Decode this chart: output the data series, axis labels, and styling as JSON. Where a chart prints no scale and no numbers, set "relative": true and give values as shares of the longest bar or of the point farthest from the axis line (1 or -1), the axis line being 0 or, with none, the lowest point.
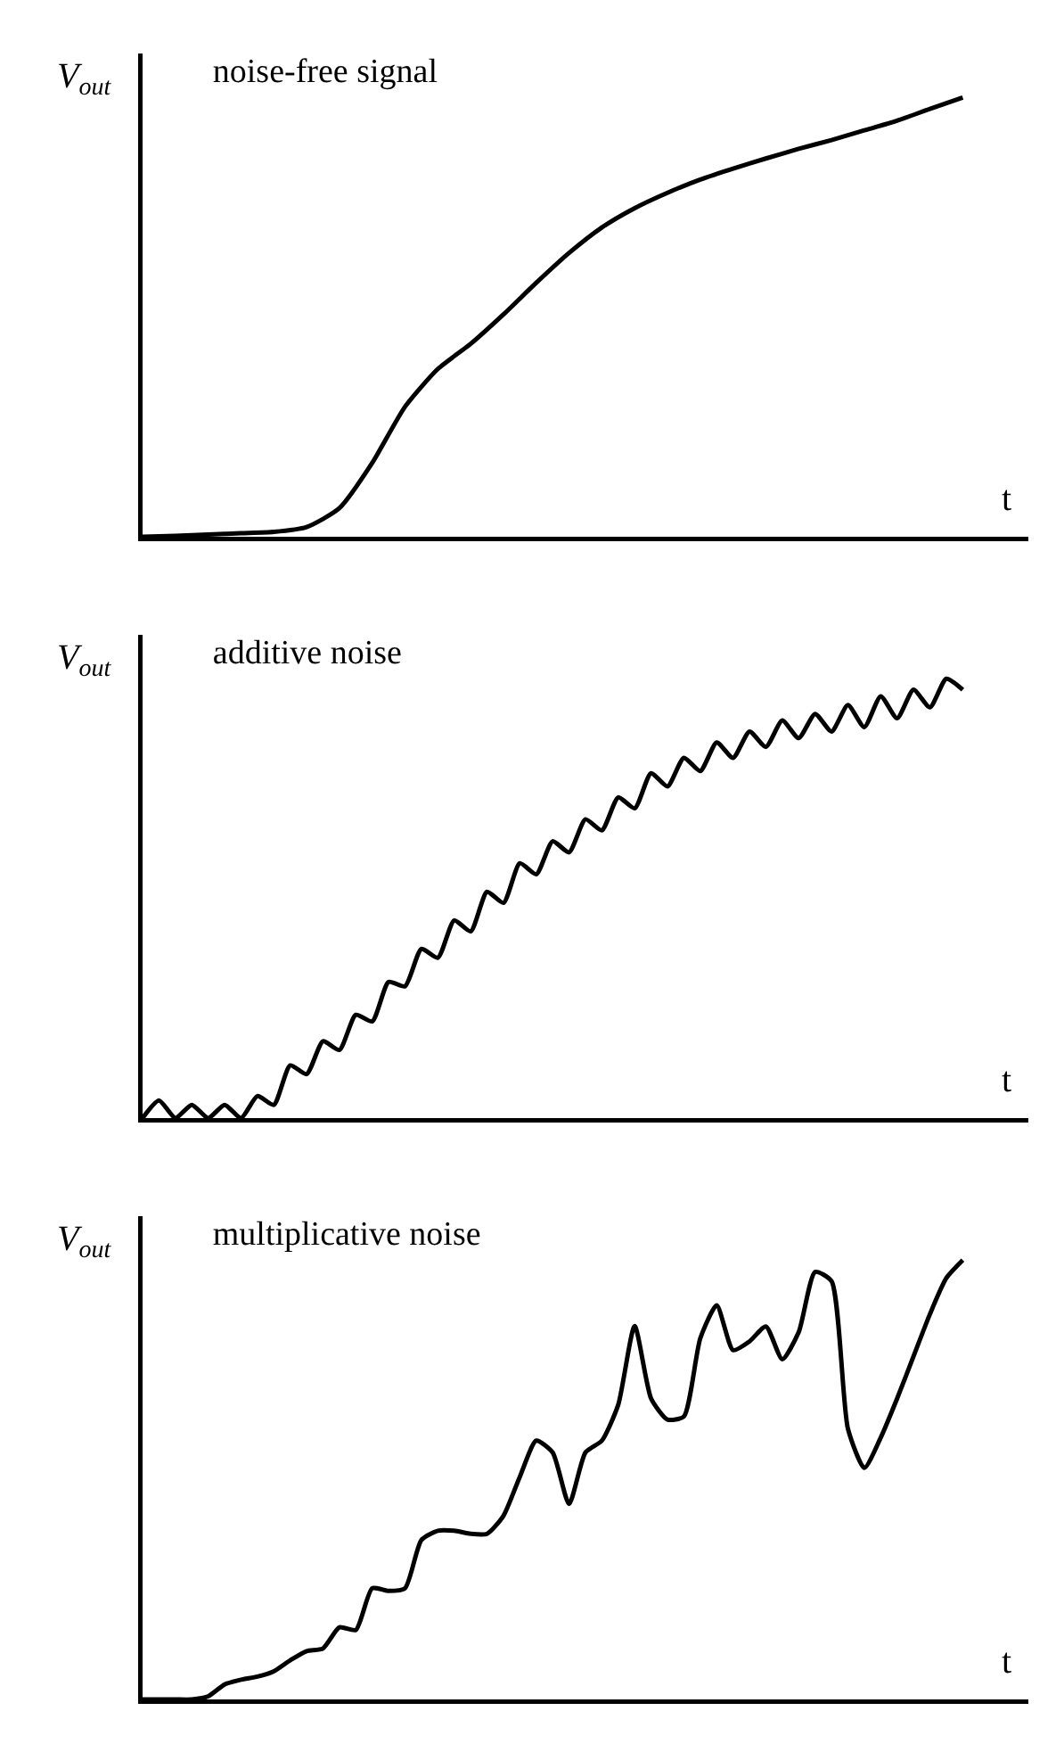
{
  "chart_data": [
    {
      "type": "line",
      "title": "noise-free signal",
      "xlabel": "t",
      "ylabel": "V$_{out}$",
      "relative": true,
      "grid": false,
      "marker": "none",
      "line_style": "solid",
      "categories": [
        null,
        null,
        null,
        null,
        null,
        null,
        null,
        null,
        null,
        null,
        null,
        null,
        null,
        null,
        null,
        null,
        null,
        null,
        null,
        null,
        null,
        null,
        null,
        null,
        null,
        null
      ],
      "series": [
        {
          "color": "#000000",
          "values": [
            0,
            0.002,
            0.005,
            0.008,
            0.011,
            0.022,
            0.065,
            0.168,
            0.296,
            0.382,
            0.439,
            0.506,
            0.578,
            0.646,
            0.704,
            0.748,
            0.783,
            0.813,
            0.838,
            0.861,
            0.883,
            0.903,
            0.925,
            0.947,
            0.974,
            1
          ]
        }
      ]
    },
    {
      "type": "line",
      "title": "additive noise",
      "xlabel": "t",
      "ylabel": "V$_{out}$",
      "relative": true,
      "grid": false,
      "marker": "none",
      "line_style": "solid",
      "categories": [
        null,
        null,
        null,
        null,
        null,
        null,
        null,
        null,
        null,
        null,
        null,
        null,
        null,
        null,
        null,
        null,
        null,
        null,
        null,
        null,
        null,
        null,
        null,
        null,
        null,
        null,
        null,
        null,
        null,
        null,
        null,
        null,
        null,
        null,
        null,
        null,
        null,
        null,
        null,
        null,
        null,
        null,
        null,
        null,
        null,
        null,
        null,
        null,
        null,
        null,
        null
      ],
      "series": [
        {
          "color": "#000000",
          "values": [
            0,
            0.04,
            0,
            0.03,
            0,
            0.03,
            0,
            0.05,
            0.03,
            0.12,
            0.1,
            0.175,
            0.155,
            0.235,
            0.22,
            0.31,
            0.3,
            0.385,
            0.365,
            0.45,
            0.425,
            0.515,
            0.49,
            0.58,
            0.555,
            0.63,
            0.605,
            0.68,
            0.655,
            0.73,
            0.705,
            0.785,
            0.755,
            0.82,
            0.79,
            0.855,
            0.82,
            0.88,
            0.845,
            0.905,
            0.865,
            0.92,
            0.88,
            0.94,
            0.89,
            0.96,
            0.91,
            0.975,
            0.935,
            1,
            0.975
          ]
        }
      ]
    },
    {
      "type": "line",
      "title": "multiplicative noise",
      "xlabel": "t",
      "ylabel": "V$_{out}$",
      "relative": true,
      "grid": false,
      "marker": "none",
      "line_style": "solid",
      "categories": [
        null,
        null,
        null,
        null,
        null,
        null,
        null,
        null,
        null,
        null,
        null,
        null,
        null,
        null,
        null,
        null,
        null,
        null,
        null,
        null,
        null,
        null,
        null,
        null,
        null,
        null,
        null,
        null,
        null,
        null,
        null,
        null,
        null,
        null,
        null,
        null,
        null,
        null,
        null,
        null,
        null,
        null,
        null,
        null,
        null,
        null,
        null,
        null,
        null,
        null,
        null
      ],
      "series": [
        {
          "color": "#000000",
          "values": [
            0,
            0,
            0,
            0,
            0.007,
            0.034,
            0.045,
            0.052,
            0.064,
            0.089,
            0.11,
            0.116,
            0.164,
            0.158,
            0.253,
            0.247,
            0.253,
            0.363,
            0.384,
            0.384,
            0.377,
            0.377,
            0.418,
            0.507,
            0.589,
            0.562,
            0.445,
            0.562,
            0.589,
            0.671,
            0.85,
            0.685,
            0.637,
            0.644,
            0.822,
            0.897,
            0.795,
            0.815,
            0.849,
            0.774,
            0.836,
            0.973,
            0.952,
            0.616,
            0.527,
            0.596,
            0.685,
            0.781,
            0.877,
            0.959,
            1
          ]
        }
      ]
    }
  ]
}
